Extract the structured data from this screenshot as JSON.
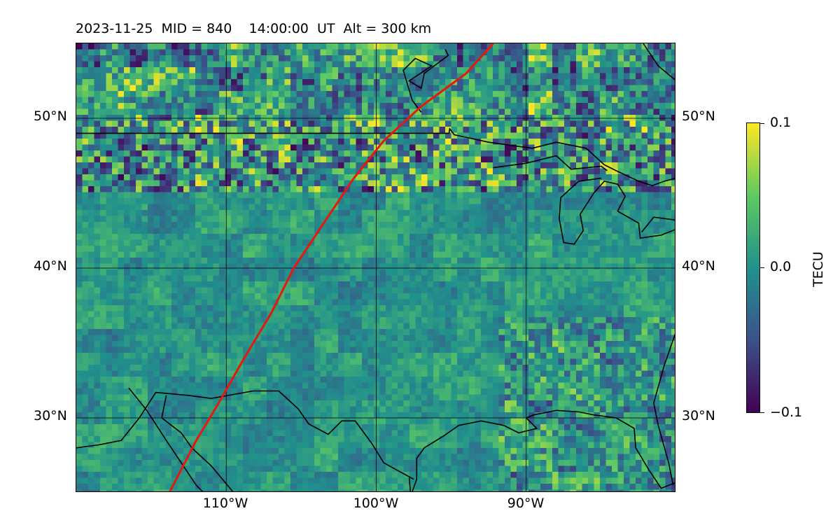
{
  "figure": {
    "title": "2023-11-25  MID = 840    14:00:00  UT  Alt = 300 km"
  },
  "map": {
    "projection": "equirectangular",
    "lon_range": [
      -120,
      -80
    ],
    "lat_range": [
      25,
      55
    ],
    "gridlines": true,
    "lat_ticks": [
      {
        "value": 50,
        "label": "50°N"
      },
      {
        "value": 40,
        "label": "40°N"
      },
      {
        "value": 30,
        "label": "30°N"
      }
    ],
    "lon_ticks": [
      {
        "value": -110,
        "label": "110°W"
      },
      {
        "value": -100,
        "label": "100°W"
      },
      {
        "value": -90,
        "label": "90°W"
      }
    ],
    "field": {
      "quantity": "TEC perturbation",
      "colormap": "viridis",
      "vmin": -0.1,
      "vmax": 0.1
    },
    "track": {
      "color": "#e8170c",
      "points": [
        [
          -113.8,
          25.0
        ],
        [
          -112.0,
          28.5
        ],
        [
          -110.5,
          31.0
        ],
        [
          -108.8,
          34.0
        ],
        [
          -107.0,
          37.0
        ],
        [
          -105.5,
          40.0
        ],
        [
          -103.5,
          43.0
        ],
        [
          -101.5,
          46.0
        ],
        [
          -99.5,
          48.5
        ],
        [
          -97.0,
          50.8
        ],
        [
          -94.0,
          53.0
        ],
        [
          -92.2,
          55.0
        ]
      ]
    },
    "coastline_color": "#000000"
  },
  "colorbar": {
    "label": "TECU",
    "ticks": [
      {
        "value": 0.1,
        "label": "0.1"
      },
      {
        "value": 0.0,
        "label": "0.0"
      },
      {
        "value": -0.1,
        "label": "−0.1"
      }
    ]
  }
}
